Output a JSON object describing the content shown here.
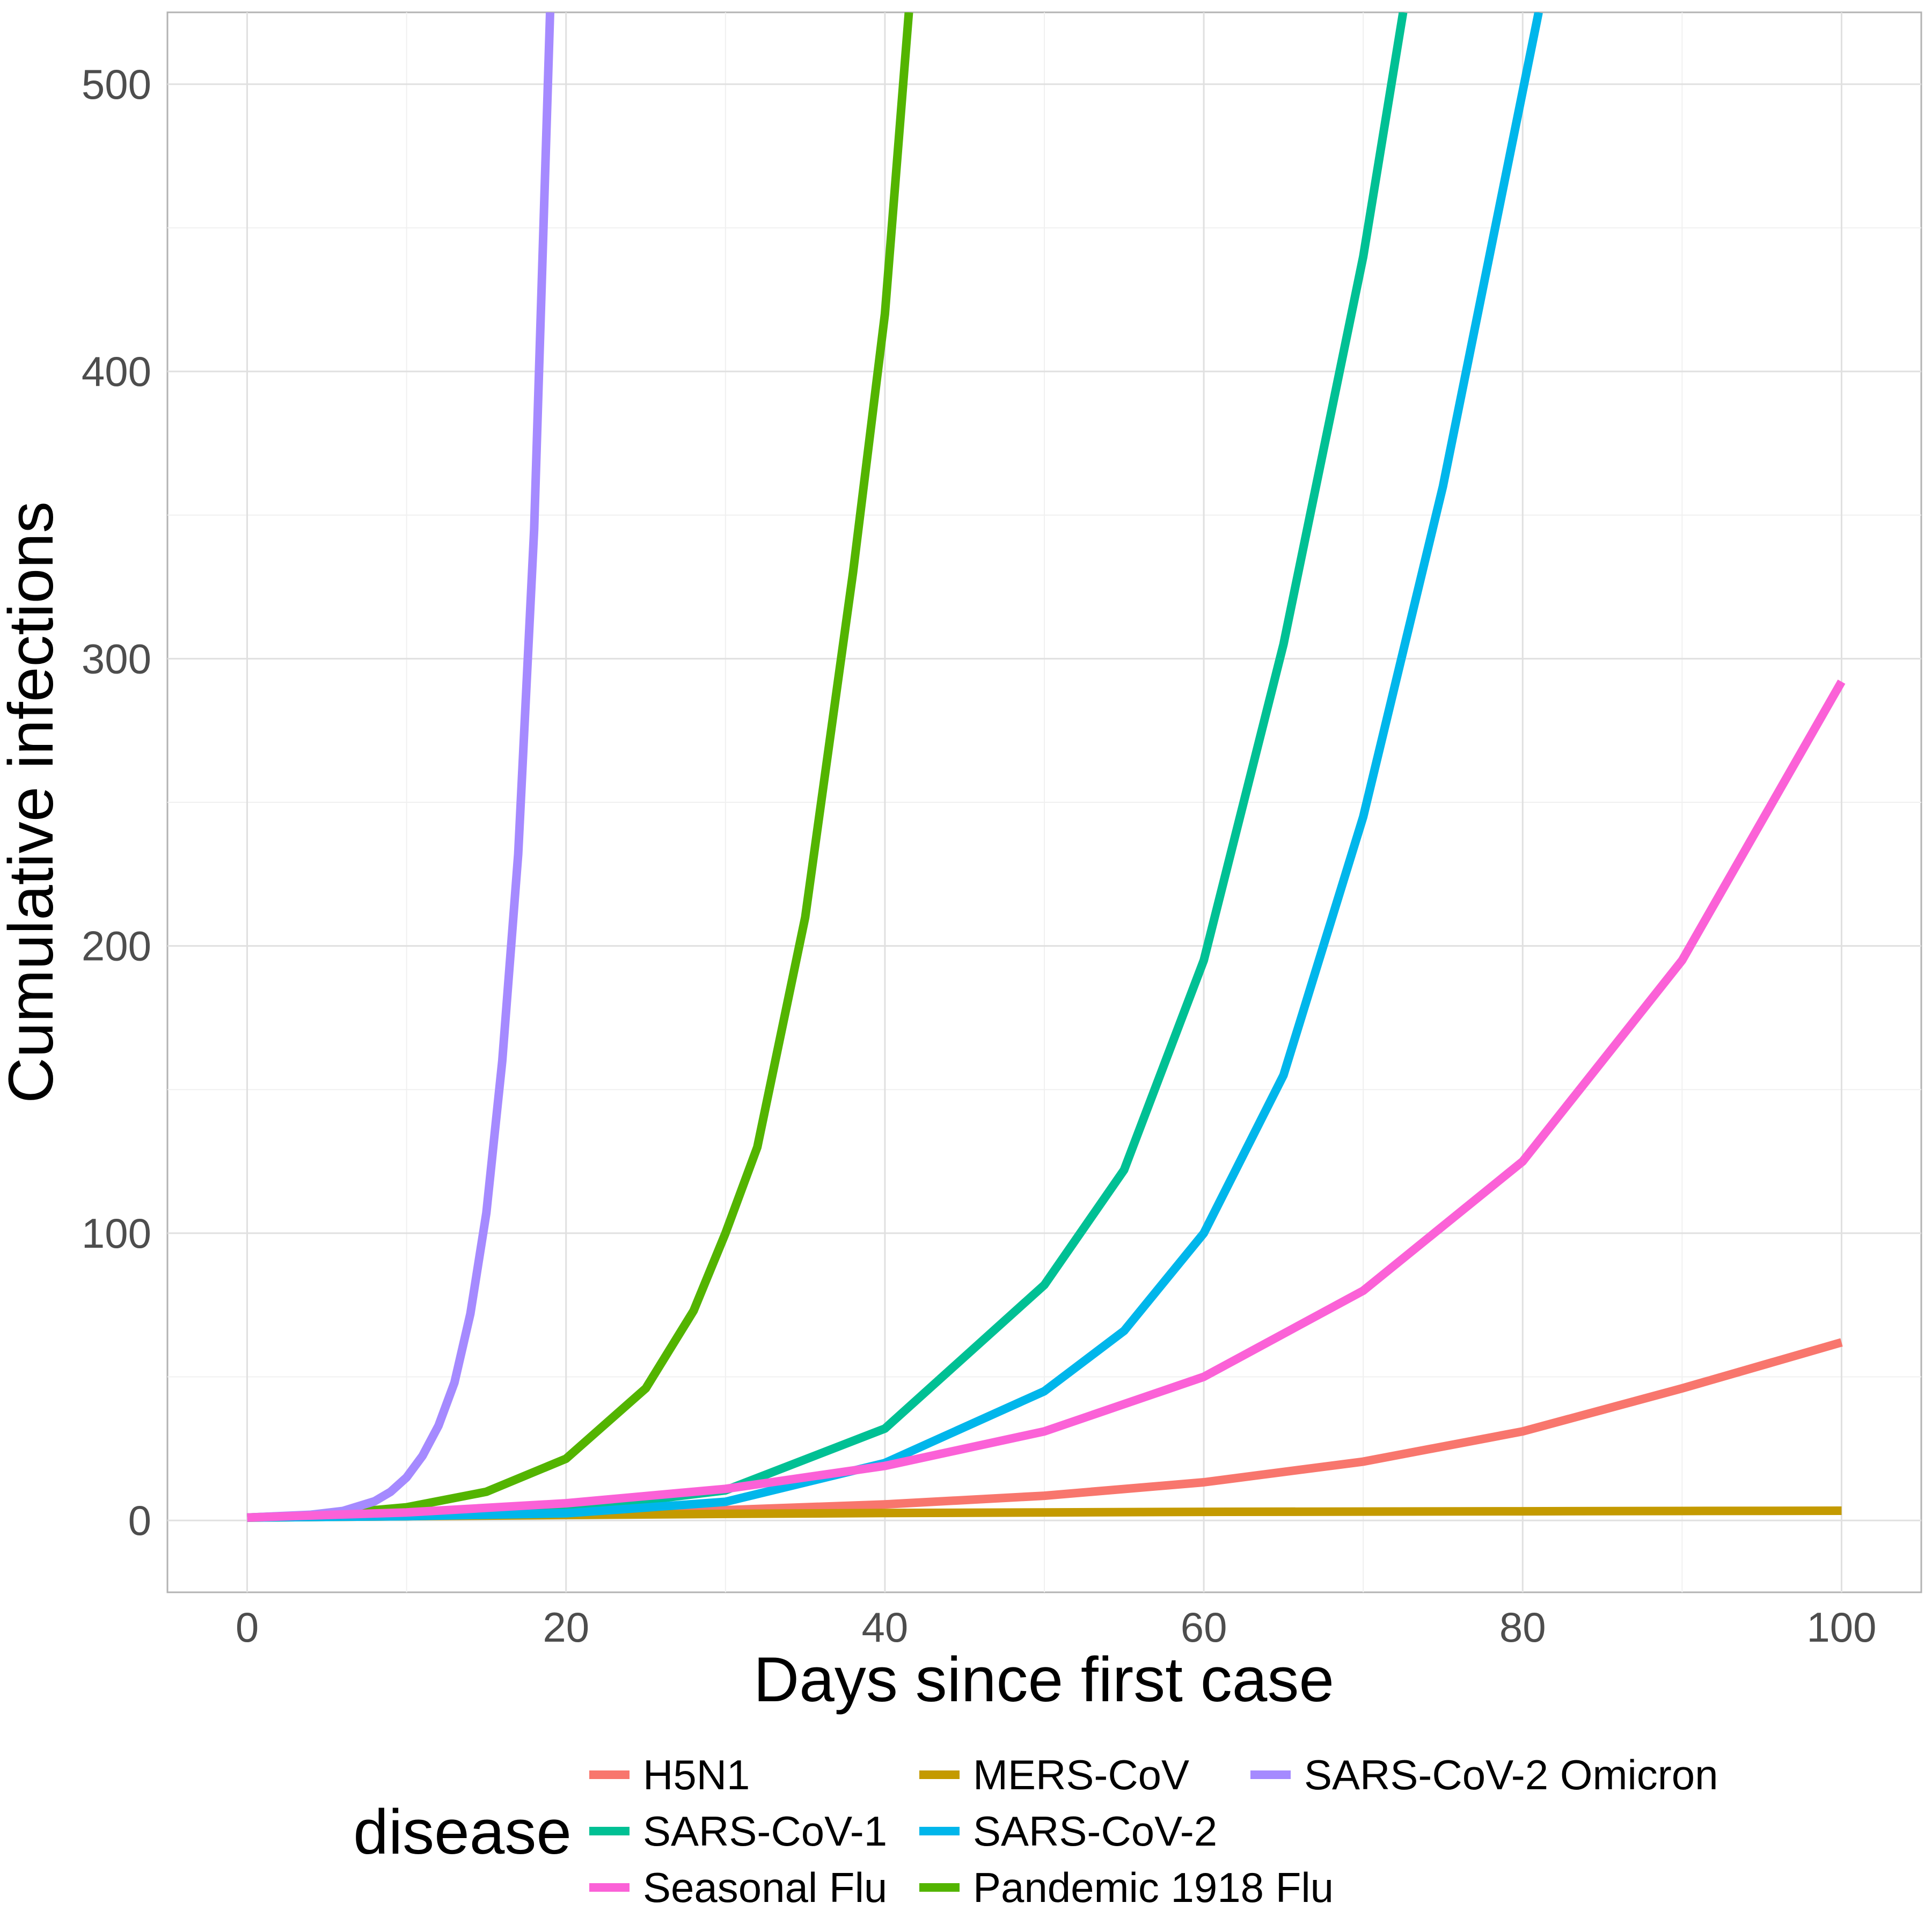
{
  "chart_data": {
    "type": "line",
    "title": "",
    "xlabel": "Days since first case",
    "ylabel": "Cumulative infections",
    "xlim": [
      -5,
      105
    ],
    "ylim": [
      -25,
      525
    ],
    "x_ticks": [
      0,
      20,
      40,
      60,
      80,
      100
    ],
    "y_ticks": [
      0,
      100,
      200,
      300,
      400,
      500
    ],
    "grid": true,
    "legend": {
      "title": "disease",
      "position": "bottom"
    },
    "series": [
      {
        "name": "H5N1",
        "color": "#F8766D",
        "x": [
          0,
          10,
          20,
          30,
          40,
          50,
          60,
          70,
          80,
          90,
          100
        ],
        "y": [
          1,
          1.5,
          2.3,
          3.6,
          5.6,
          8.6,
          13.3,
          20.5,
          31,
          46,
          62
        ]
      },
      {
        "name": "MERS-CoV",
        "color": "#C49A00",
        "x": [
          0,
          10,
          20,
          30,
          40,
          50,
          60,
          70,
          80,
          90,
          100
        ],
        "y": [
          1,
          1.5,
          1.9,
          2.3,
          2.6,
          2.8,
          3.0,
          3.1,
          3.2,
          3.3,
          3.4
        ]
      },
      {
        "name": "Pandemic 1918 Flu",
        "color": "#53B400",
        "x": [
          0,
          5,
          10,
          15,
          20,
          25,
          28,
          30,
          32,
          35,
          38,
          40,
          41.5
        ],
        "y": [
          1,
          2.1,
          4.6,
          10,
          21.5,
          46,
          73,
          100,
          130,
          210,
          330,
          420,
          525
        ]
      },
      {
        "name": "SARS-CoV-1",
        "color": "#00C094",
        "x": [
          0,
          10,
          20,
          30,
          40,
          50,
          55,
          60,
          65,
          70,
          72.5
        ],
        "y": [
          1,
          1.9,
          3.7,
          10.5,
          32,
          82,
          122,
          195,
          305,
          440,
          525
        ]
      },
      {
        "name": "SARS-CoV-2",
        "color": "#00B6EB",
        "x": [
          0,
          10,
          20,
          30,
          40,
          50,
          55,
          60,
          65,
          70,
          75,
          81
        ],
        "y": [
          1,
          1.5,
          2.5,
          6.5,
          20,
          45,
          66,
          100,
          155,
          245,
          360,
          525
        ]
      },
      {
        "name": "SARS-CoV-2 Omicron",
        "color": "#A58AFF",
        "x": [
          0,
          4,
          6,
          8,
          9,
          10,
          11,
          12,
          13,
          14,
          15,
          16,
          17,
          18,
          19
        ],
        "y": [
          1,
          2,
          3.3,
          6.7,
          10,
          15,
          22.5,
          33,
          48,
          72,
          107,
          160,
          232,
          345,
          525
        ]
      },
      {
        "name": "Seasonal Flu",
        "color": "#FB61D7",
        "x": [
          0,
          10,
          20,
          30,
          40,
          50,
          60,
          70,
          80,
          90,
          100
        ],
        "y": [
          1,
          2.8,
          6,
          11,
          19,
          31,
          50,
          80,
          125,
          195,
          292
        ]
      }
    ]
  }
}
